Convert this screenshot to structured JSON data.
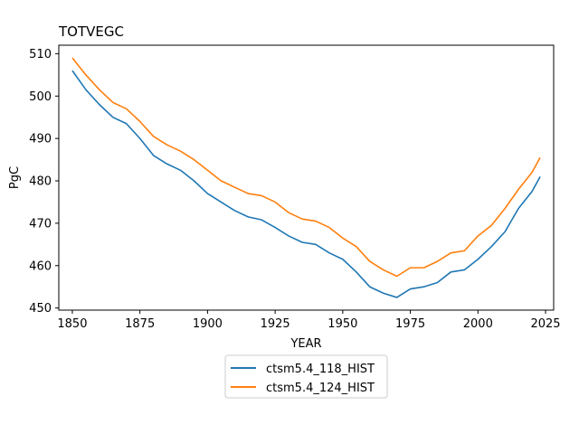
{
  "chart_data": {
    "type": "line",
    "title": "TOTVEGC",
    "xlabel": "YEAR",
    "ylabel": "PgC",
    "xlim": [
      1845,
      2028
    ],
    "ylim": [
      449.5,
      512
    ],
    "xticks": [
      1850,
      1875,
      1900,
      1925,
      1950,
      1975,
      2000,
      2025
    ],
    "yticks": [
      450,
      460,
      470,
      480,
      490,
      500,
      510
    ],
    "legend_position": "bottom-center-outside",
    "series": [
      {
        "name": "ctsm5.4_118_HIST",
        "color": "#1f77b4",
        "x": [
          1850,
          1855,
          1860,
          1865,
          1870,
          1875,
          1880,
          1885,
          1890,
          1895,
          1900,
          1905,
          1910,
          1915,
          1920,
          1925,
          1930,
          1935,
          1940,
          1945,
          1950,
          1955,
          1960,
          1965,
          1970,
          1975,
          1980,
          1985,
          1990,
          1995,
          2000,
          2005,
          2010,
          2015,
          2020,
          2023
        ],
        "y": [
          506,
          501.5,
          498,
          495,
          493.5,
          490,
          486,
          484,
          482.5,
          480,
          477,
          475,
          473,
          471.5,
          470.8,
          469,
          467,
          465.5,
          465,
          463,
          461.5,
          458.5,
          455,
          453.5,
          452.5,
          454.5,
          455,
          456,
          458.5,
          459,
          461.5,
          464.5,
          468,
          473.5,
          477.5,
          481
        ]
      },
      {
        "name": "ctsm5.4_124_HIST",
        "color": "#ff7f0e",
        "x": [
          1850,
          1855,
          1860,
          1865,
          1870,
          1875,
          1880,
          1885,
          1890,
          1895,
          1900,
          1905,
          1910,
          1915,
          1920,
          1925,
          1930,
          1935,
          1940,
          1945,
          1950,
          1955,
          1960,
          1965,
          1970,
          1975,
          1980,
          1985,
          1990,
          1995,
          2000,
          2005,
          2010,
          2015,
          2020,
          2023
        ],
        "y": [
          509,
          505,
          501.5,
          498.5,
          497,
          494,
          490.5,
          488.5,
          487,
          485,
          482.5,
          480,
          478.5,
          477,
          476.5,
          475,
          472.5,
          471,
          470.5,
          469,
          466.5,
          464.5,
          461,
          459,
          457.5,
          459.5,
          459.5,
          461,
          463,
          463.5,
          467,
          469.5,
          473.5,
          478,
          482,
          485.5
        ]
      }
    ]
  }
}
